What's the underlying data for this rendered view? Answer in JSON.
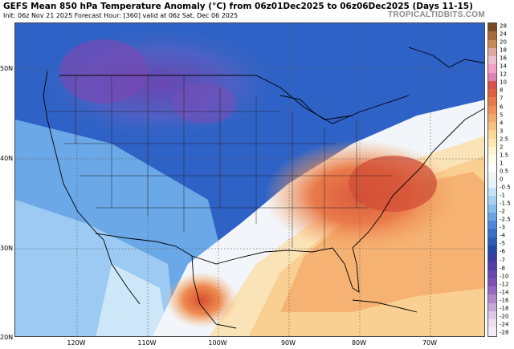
{
  "header": {
    "title": "GEFS Mean 850 hPa Temperature Anomaly (°C) from 06z01Dec2025 to 06z06Dec2025 (Days 11-15)",
    "subtitle": "Init: 06z Nov 21 2025   Forecast Hour: [360]   valid at 06z Sat, Dec 06 2025",
    "brand": "TROPICALTIDBITS.COM"
  },
  "axes": {
    "lat_labels": [
      "50N",
      "40N",
      "30N",
      "20N"
    ],
    "lon_labels": [
      "120W",
      "110W",
      "100W",
      "90W",
      "80W",
      "70W"
    ]
  },
  "colorbar": {
    "labels": [
      "28",
      "24",
      "20",
      "18",
      "16",
      "14",
      "12",
      "10",
      "8",
      "7",
      "6",
      "5",
      "4",
      "3",
      "2.5",
      "2",
      "1.5",
      "1",
      "0.5",
      "0",
      "-0.5",
      "-1",
      "-1.5",
      "-2",
      "-2.5",
      "-3",
      "-4",
      "-5",
      "-6",
      "-7",
      "-8",
      "-10",
      "-12",
      "-14",
      "-16",
      "-18",
      "-20",
      "-24",
      "-28"
    ],
    "colors": [
      "#7a4a26",
      "#a86a3a",
      "#c98a5a",
      "#e0a8a0",
      "#f0c0d0",
      "#f4a0c8",
      "#e080b8",
      "#d85050",
      "#e06040",
      "#e87848",
      "#f09058",
      "#f4a868",
      "#f8c080",
      "#fcd898",
      "#fde8b0",
      "#fef4d0",
      "#fffbe8",
      "#ffffff",
      "#f4f4f4",
      "#e8f4fc",
      "#c8e4f8",
      "#a8d0f4",
      "#88bcec",
      "#68a4e4",
      "#4c88d8",
      "#3870c8",
      "#2c5cb8",
      "#2448a4",
      "#3a3ca0",
      "#5040a8",
      "#6848b0",
      "#8050b8",
      "#9868c0",
      "#b088c8",
      "#c8a8d8",
      "#dcc8e8",
      "#ece0f0",
      "#f4ecf8"
    ],
    "colors_note": ""
  }
}
